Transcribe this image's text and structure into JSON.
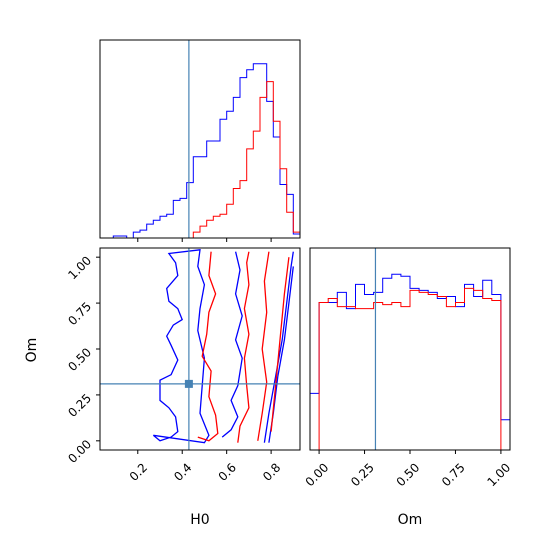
{
  "chart_data": [
    {
      "panel": "H0 marginal histogram",
      "type": "histogram",
      "xlim": [
        0.03,
        0.93
      ],
      "truth_x": 0.43,
      "colors": {
        "blue": "#0000ff",
        "red": "#ff0000",
        "truth": "#4682b4"
      },
      "bin_edges": [
        0.03,
        0.06,
        0.09,
        0.12,
        0.15,
        0.18,
        0.21,
        0.24,
        0.27,
        0.3,
        0.33,
        0.36,
        0.39,
        0.42,
        0.45,
        0.48,
        0.51,
        0.54,
        0.57,
        0.6,
        0.63,
        0.66,
        0.69,
        0.72,
        0.75,
        0.78,
        0.81,
        0.84,
        0.87,
        0.9,
        0.93
      ],
      "series": [
        {
          "color": "blue",
          "values": [
            0.0,
            0.0,
            0.01,
            0.01,
            0.0,
            0.03,
            0.04,
            0.07,
            0.09,
            0.11,
            0.12,
            0.19,
            0.2,
            0.28,
            0.41,
            0.41,
            0.49,
            0.49,
            0.6,
            0.64,
            0.71,
            0.81,
            0.85,
            0.88,
            0.88,
            0.69,
            0.51,
            0.27,
            0.22,
            0.02
          ]
        },
        {
          "color": "red",
          "values": [
            0.0,
            0.0,
            0.0,
            0.0,
            0.0,
            0.0,
            0.0,
            0.0,
            0.0,
            0.0,
            0.0,
            0.0,
            0.0,
            0.0,
            0.03,
            0.06,
            0.09,
            0.11,
            0.12,
            0.17,
            0.25,
            0.29,
            0.45,
            0.54,
            0.71,
            0.79,
            0.59,
            0.35,
            0.13,
            0.03
          ]
        }
      ]
    },
    {
      "panel": "Om marginal histogram",
      "type": "histogram",
      "xlim": [
        -0.05,
        1.05
      ],
      "xticks": [
        "0.00",
        "0.25",
        "0.50",
        "0.75",
        "1.00"
      ],
      "xlabel": "Om",
      "truth_x": 0.31,
      "colors": {
        "blue": "#0000ff",
        "red": "#ff0000",
        "truth": "#4682b4"
      },
      "bin_edges": [
        -0.05,
        0.0,
        0.05,
        0.1,
        0.15,
        0.2,
        0.25,
        0.3,
        0.35,
        0.4,
        0.45,
        0.5,
        0.55,
        0.6,
        0.65,
        0.7,
        0.75,
        0.8,
        0.85,
        0.9,
        0.95,
        1.0,
        1.05
      ],
      "series": [
        {
          "color": "blue",
          "values": [
            0.28,
            0.73,
            0.73,
            0.78,
            0.7,
            0.82,
            0.77,
            0.78,
            0.85,
            0.87,
            0.86,
            0.8,
            0.79,
            0.78,
            0.75,
            0.76,
            0.71,
            0.82,
            0.76,
            0.84,
            0.77,
            0.15
          ]
        },
        {
          "color": "red",
          "values": [
            0.0,
            0.73,
            0.75,
            0.71,
            0.71,
            0.7,
            0.7,
            0.73,
            0.72,
            0.73,
            0.71,
            0.79,
            0.78,
            0.77,
            0.76,
            0.71,
            0.73,
            0.8,
            0.79,
            0.75,
            0.74,
            0.0
          ]
        }
      ]
    },
    {
      "panel": "H0 vs Om 2D contour",
      "type": "contour",
      "xlim": [
        0.03,
        0.93
      ],
      "ylim": [
        -0.05,
        1.05
      ],
      "xticks": [
        "0.2",
        "0.4",
        "0.6",
        "0.8"
      ],
      "yticks": [
        "0.00",
        "0.25",
        "0.50",
        "0.75",
        "1.00"
      ],
      "xlabel": "H0",
      "ylabel": "Om",
      "truth": {
        "H0": 0.43,
        "Om": 0.31
      },
      "colors": {
        "blue": "#0000ff",
        "red": "#ff0000",
        "truth": "#4682b4"
      },
      "series": [
        {
          "color": "blue",
          "level": "outer",
          "points": [
            [
              0.27,
              0.03
            ],
            [
              0.3,
              0.0
            ],
            [
              0.35,
              0.02
            ],
            [
              0.38,
              0.05
            ],
            [
              0.37,
              0.13
            ],
            [
              0.34,
              0.18
            ],
            [
              0.3,
              0.22
            ],
            [
              0.3,
              0.33
            ],
            [
              0.35,
              0.36
            ],
            [
              0.38,
              0.44
            ],
            [
              0.35,
              0.52
            ],
            [
              0.33,
              0.57
            ],
            [
              0.36,
              0.63
            ],
            [
              0.4,
              0.66
            ],
            [
              0.38,
              0.72
            ],
            [
              0.34,
              0.76
            ],
            [
              0.33,
              0.83
            ],
            [
              0.38,
              0.9
            ],
            [
              0.37,
              0.97
            ],
            [
              0.34,
              1.02
            ],
            [
              0.48,
              1.04
            ],
            [
              0.47,
              0.95
            ],
            [
              0.5,
              0.85
            ],
            [
              0.48,
              0.72
            ],
            [
              0.47,
              0.6
            ],
            [
              0.5,
              0.45
            ],
            [
              0.49,
              0.3
            ],
            [
              0.48,
              0.15
            ],
            [
              0.52,
              0.03
            ],
            [
              0.5,
              -0.01
            ],
            [
              0.27,
              0.03
            ]
          ]
        },
        {
          "color": "blue",
          "level": "middle",
          "points": [
            [
              0.58,
              0.02
            ],
            [
              0.62,
              0.06
            ],
            [
              0.65,
              0.13
            ],
            [
              0.62,
              0.22
            ],
            [
              0.65,
              0.3
            ],
            [
              0.67,
              0.45
            ],
            [
              0.64,
              0.55
            ],
            [
              0.67,
              0.68
            ],
            [
              0.64,
              0.8
            ],
            [
              0.66,
              0.93
            ],
            [
              0.64,
              1.03
            ]
          ]
        },
        {
          "color": "blue",
          "level": "inner",
          "points": [
            [
              0.77,
              -0.01
            ],
            [
              0.79,
              0.15
            ],
            [
              0.82,
              0.35
            ],
            [
              0.85,
              0.55
            ],
            [
              0.87,
              0.75
            ],
            [
              0.89,
              0.95
            ],
            [
              0.9,
              1.03
            ]
          ]
        },
        {
          "color": "blue",
          "level": "inner2",
          "points": [
            [
              0.79,
              -0.01
            ],
            [
              0.81,
              0.15
            ],
            [
              0.83,
              0.35
            ],
            [
              0.86,
              0.55
            ],
            [
              0.88,
              0.75
            ],
            [
              0.9,
              0.95
            ]
          ]
        },
        {
          "color": "red",
          "level": "outer",
          "points": [
            [
              0.47,
              0.02
            ],
            [
              0.52,
              0.0
            ],
            [
              0.56,
              0.04
            ],
            [
              0.55,
              0.14
            ],
            [
              0.52,
              0.24
            ],
            [
              0.53,
              0.38
            ],
            [
              0.49,
              0.46
            ],
            [
              0.51,
              0.58
            ],
            [
              0.52,
              0.7
            ],
            [
              0.55,
              0.8
            ],
            [
              0.52,
              0.9
            ],
            [
              0.53,
              1.03
            ]
          ]
        },
        {
          "color": "red",
          "level": "middle",
          "points": [
            [
              0.65,
              -0.01
            ],
            [
              0.66,
              0.08
            ],
            [
              0.7,
              0.18
            ],
            [
              0.69,
              0.3
            ],
            [
              0.68,
              0.45
            ],
            [
              0.7,
              0.58
            ],
            [
              0.68,
              0.72
            ],
            [
              0.7,
              0.85
            ],
            [
              0.69,
              0.97
            ],
            [
              0.7,
              1.03
            ]
          ]
        },
        {
          "color": "red",
          "level": "inner",
          "points": [
            [
              0.74,
              0.0
            ],
            [
              0.76,
              0.15
            ],
            [
              0.78,
              0.32
            ],
            [
              0.76,
              0.5
            ],
            [
              0.78,
              0.7
            ],
            [
              0.77,
              0.87
            ],
            [
              0.79,
              1.03
            ]
          ]
        },
        {
          "color": "red",
          "level": "inner2",
          "points": [
            [
              0.8,
              0.05
            ],
            [
              0.82,
              0.3
            ],
            [
              0.84,
              0.55
            ],
            [
              0.86,
              0.8
            ],
            [
              0.88,
              1.0
            ]
          ]
        }
      ]
    }
  ]
}
